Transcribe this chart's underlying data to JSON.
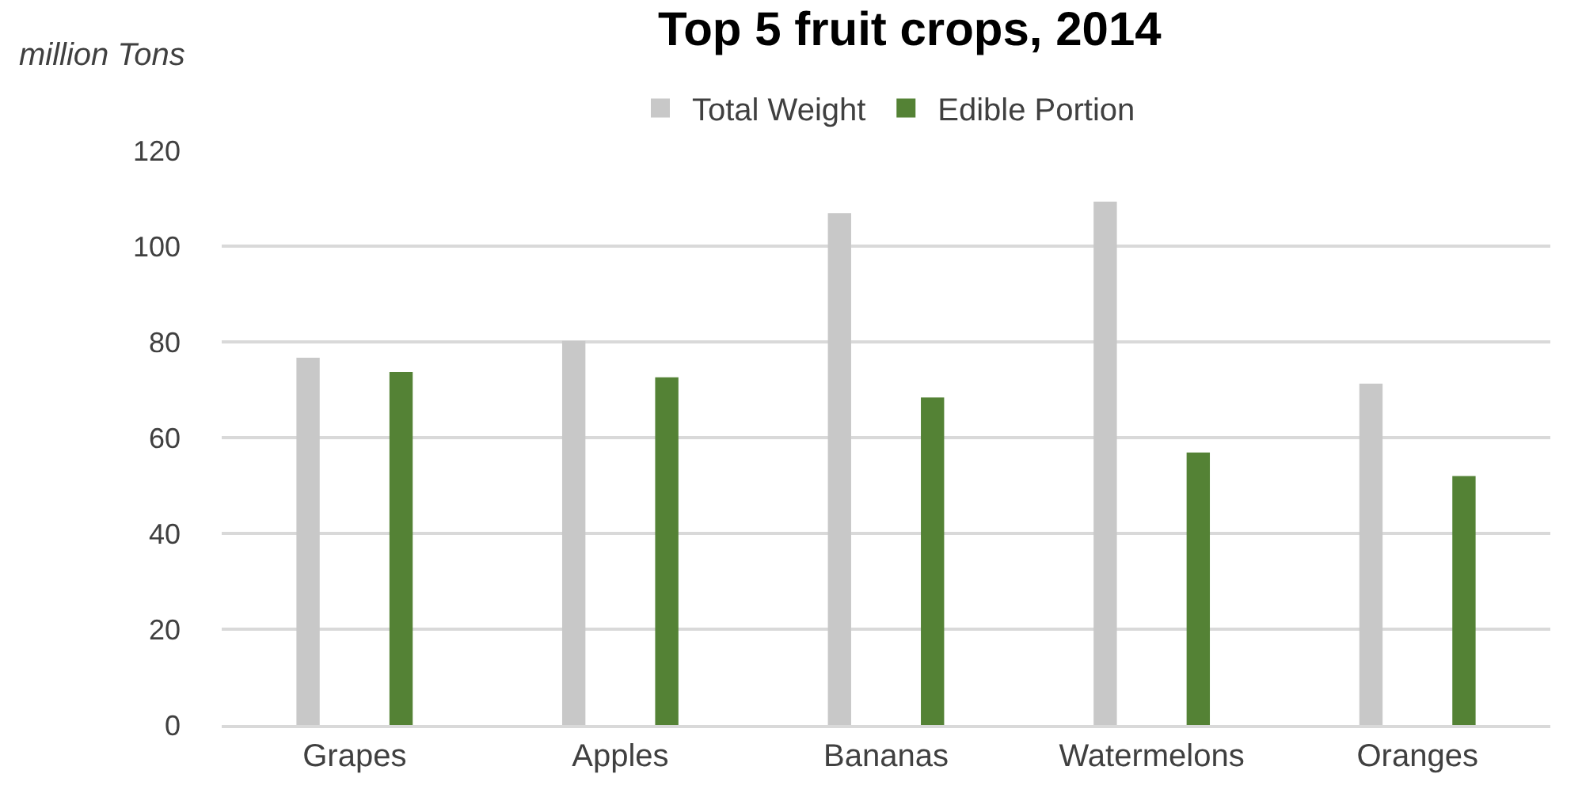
{
  "chart_data": {
    "type": "bar",
    "title": "Top 5 fruit crops, 2014",
    "ylabel": "million Tons",
    "categories": [
      "Grapes",
      "Apples",
      "Bananas",
      "Watermelons",
      "Oranges"
    ],
    "series": [
      {
        "name": "Total Weight",
        "color": "#c8c8c8",
        "values": [
          76.7,
          80.2,
          106.9,
          109.3,
          71.3
        ]
      },
      {
        "name": "Edible Portion",
        "color": "#548235",
        "values": [
          73.7,
          72.6,
          68.4,
          56.9,
          52.0
        ]
      }
    ],
    "ylim": [
      0,
      120
    ],
    "yticks": [
      0,
      20,
      40,
      60,
      80,
      100,
      120
    ],
    "grid": "y",
    "legend": "top"
  }
}
